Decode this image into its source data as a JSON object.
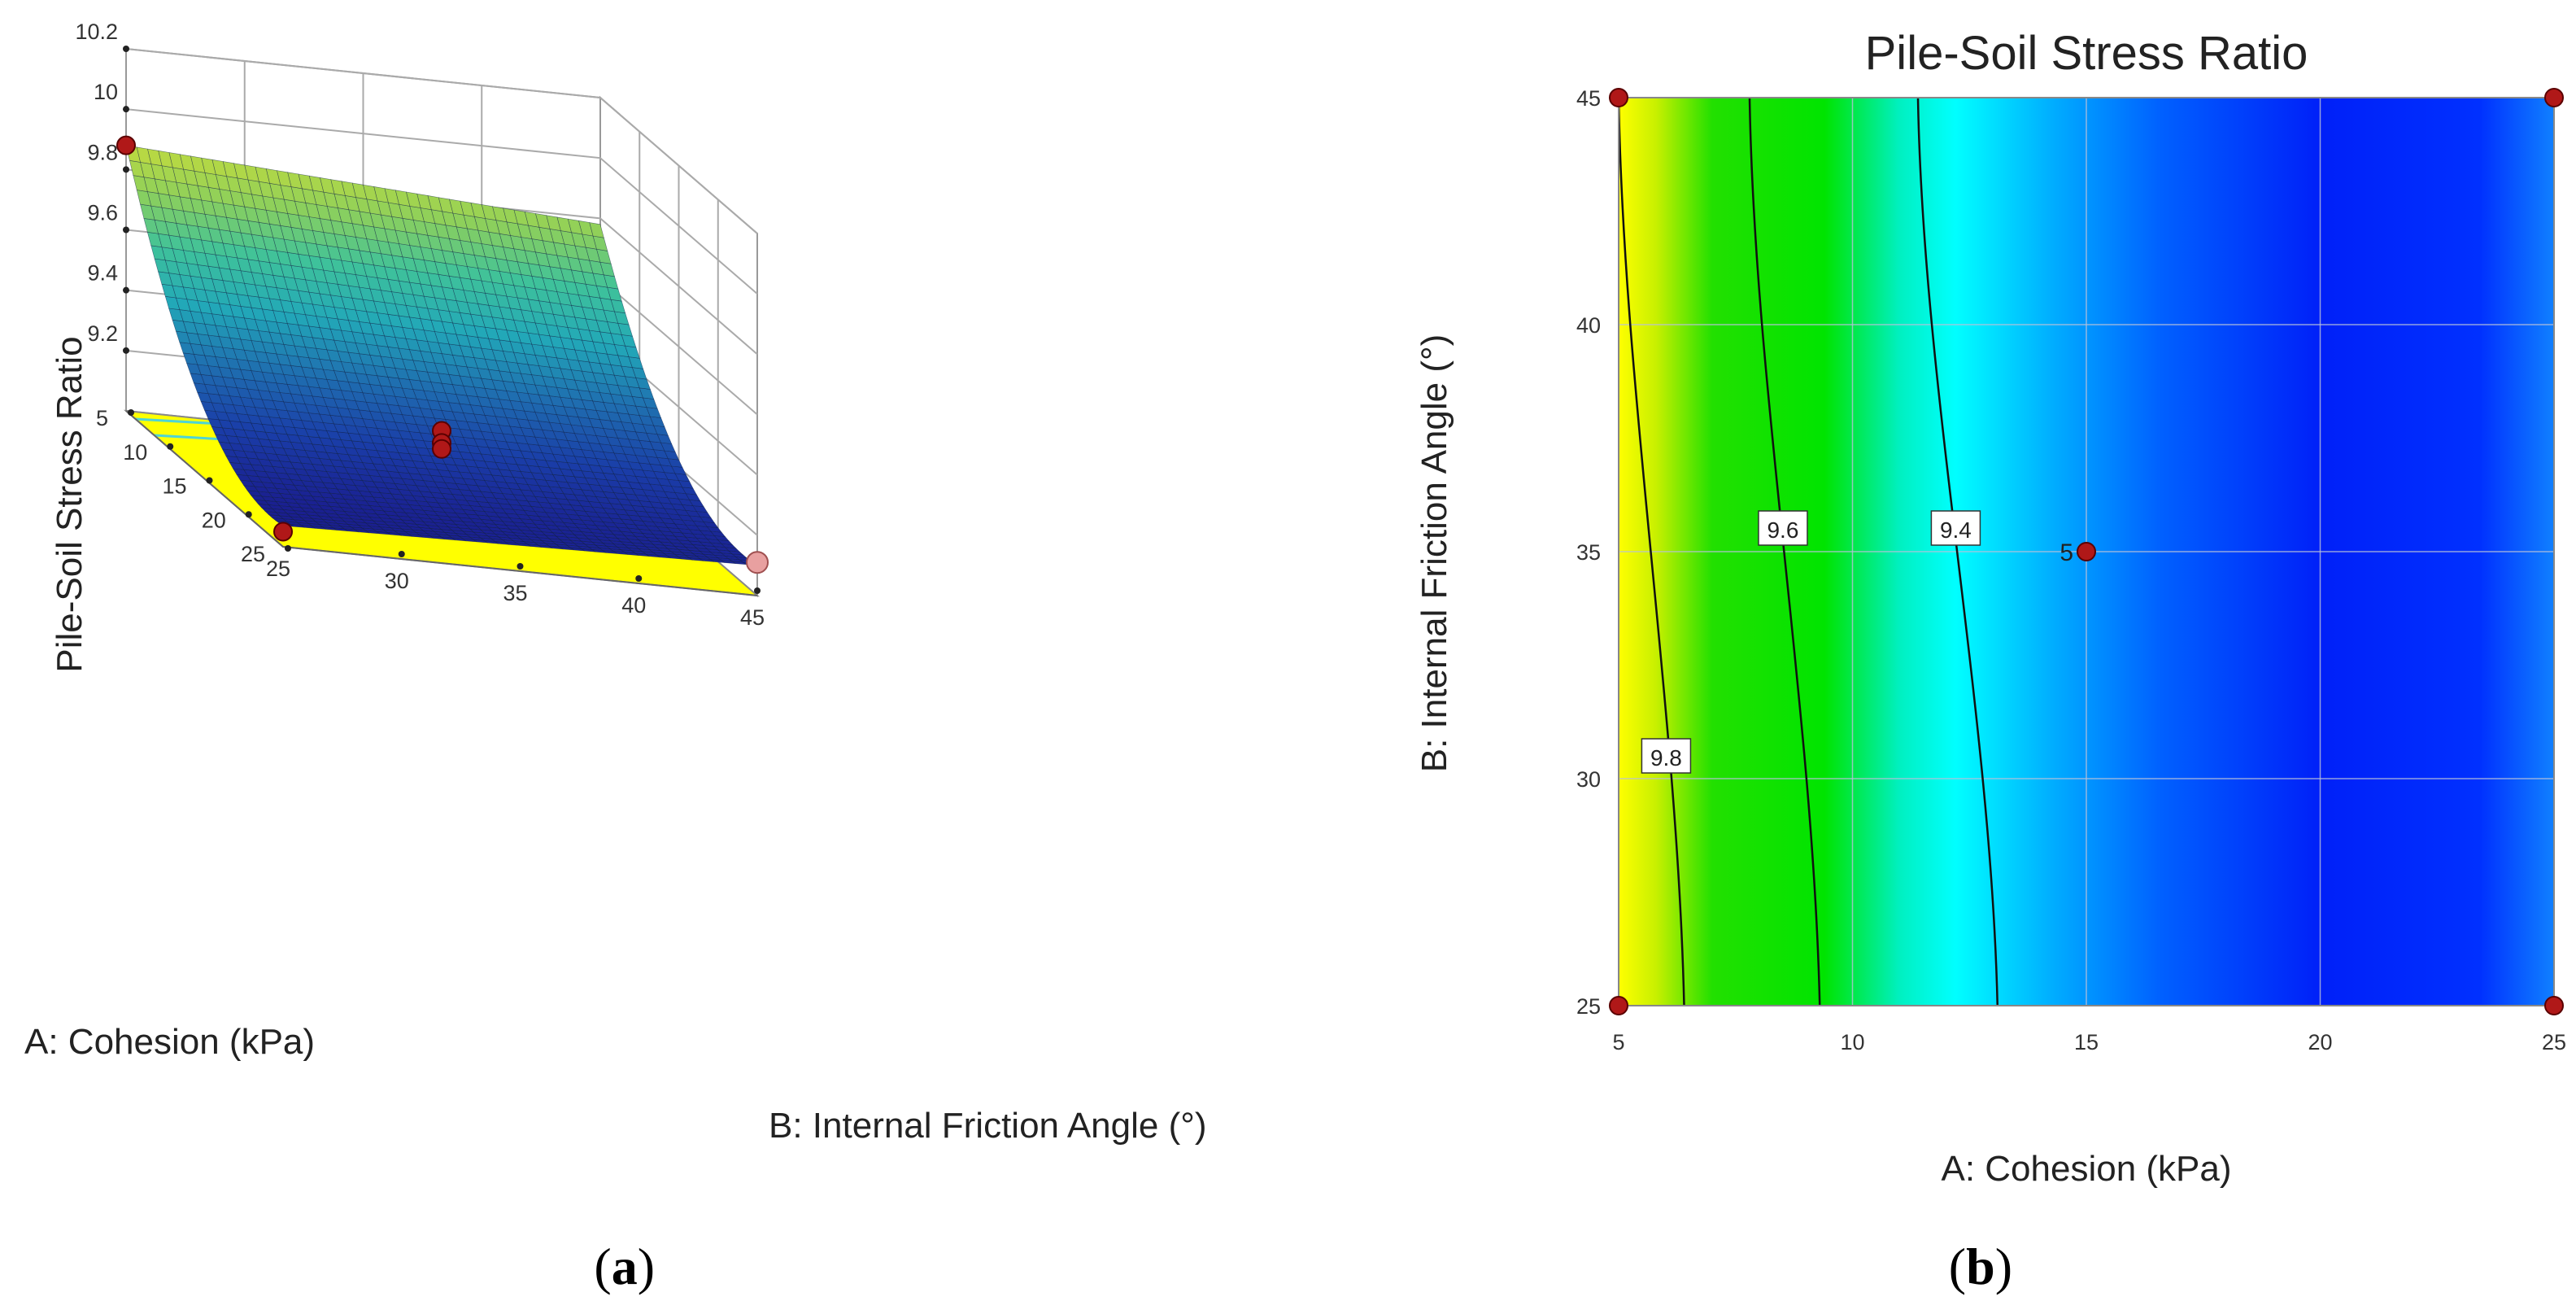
{
  "chart_data": [
    {
      "panel": "a",
      "type": "surface3d",
      "title": "",
      "zlabel": "Pile-Soil Stress Ratio",
      "xlabel": "A: Cohesion (kPa)",
      "ylabel": "B: Internal Friction Angle (°)",
      "x_ticks": [
        "5",
        "10",
        "15",
        "20",
        "25"
      ],
      "y_ticks": [
        "25",
        "30",
        "35",
        "40",
        "45"
      ],
      "z_ticks": [
        "9.2",
        "9.4",
        "9.6",
        "9.8",
        "10",
        "10.2"
      ],
      "xlim": [
        5,
        25
      ],
      "ylim": [
        25,
        45
      ],
      "zlim": [
        9.0,
        10.2
      ],
      "corner_values": [
        {
          "a": 5,
          "b": 25,
          "z": 9.88
        },
        {
          "a": 5,
          "b": 45,
          "z": 9.78
        },
        {
          "a": 25,
          "b": 25,
          "z": 9.07
        },
        {
          "a": 25,
          "b": 45,
          "z": 9.1
        }
      ],
      "design_points": [
        {
          "a": 5,
          "b": 25,
          "z": 9.88
        },
        {
          "a": 25,
          "b": 25,
          "z": 9.05
        },
        {
          "a": 25,
          "b": 45,
          "z": 9.11
        },
        {
          "a": 15,
          "b": 35,
          "z": 9.24
        },
        {
          "a": 15,
          "b": 35,
          "z": 9.2
        },
        {
          "a": 15,
          "b": 35,
          "z": 9.18
        }
      ],
      "colormap": [
        "#0000ff",
        "#00a0ff",
        "#00ffff",
        "#00ff00",
        "#ffff00"
      ],
      "base_color": "#ffff00"
    },
    {
      "panel": "b",
      "type": "contour",
      "title": "Pile-Soil Stress Ratio",
      "xlabel": "A: Cohesion (kPa)",
      "ylabel": "B: Internal Friction Angle (°)",
      "x_ticks": [
        "5",
        "10",
        "15",
        "20",
        "25"
      ],
      "y_ticks": [
        "25",
        "30",
        "35",
        "40",
        "45"
      ],
      "xlim": [
        5,
        25
      ],
      "ylim": [
        25,
        45
      ],
      "contours": [
        {
          "level": 9.8,
          "label": "9.8",
          "a_at_b25": 6.4,
          "a_at_b45": 5.0
        },
        {
          "level": 9.6,
          "label": "9.6",
          "a_at_b25": 9.3,
          "a_at_b45": 7.8
        },
        {
          "level": 9.4,
          "label": "9.4",
          "a_at_b25": 13.1,
          "a_at_b45": 11.4
        }
      ],
      "design_points": [
        {
          "a": 5,
          "b": 25
        },
        {
          "a": 5,
          "b": 45
        },
        {
          "a": 25,
          "b": 25
        },
        {
          "a": 25,
          "b": 45
        },
        {
          "a": 15,
          "b": 35,
          "count_label": "5"
        }
      ],
      "colormap": [
        "#ffff00",
        "#00e000",
        "#00ffff",
        "#0060ff",
        "#0000ff"
      ]
    }
  ],
  "captions": {
    "a": {
      "open": "(",
      "letter": "a",
      "close": ")"
    },
    "b": {
      "open": "(",
      "letter": "b",
      "close": ")"
    }
  }
}
